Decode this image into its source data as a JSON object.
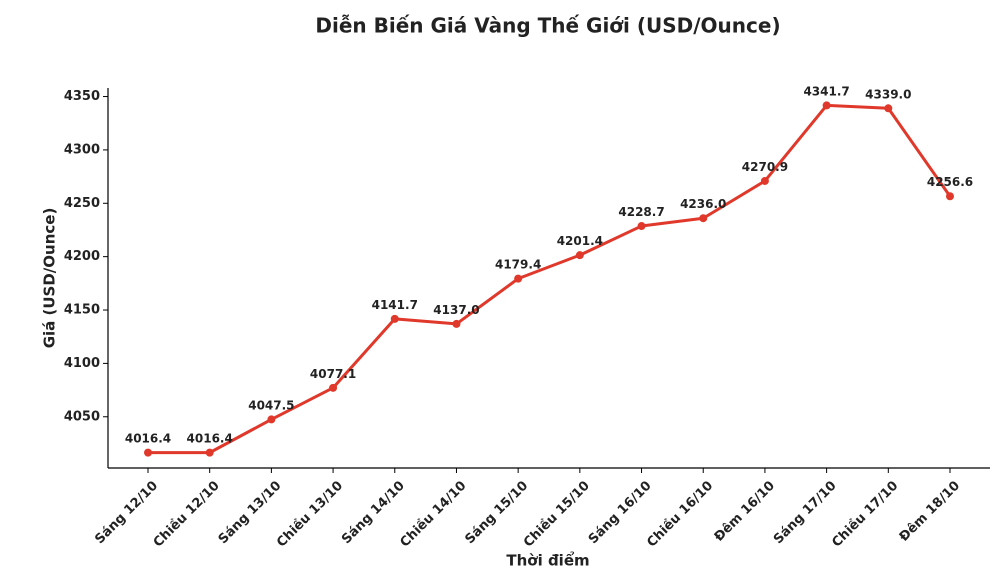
{
  "chart_data": {
    "type": "line",
    "title": "Diễn Biến Giá Vàng Thế Giới (USD/Ounce)",
    "x_label": "Thời điểm",
    "y_label": "Giá (USD/Ounce)",
    "categories": [
      "Sáng 12/10",
      "Chiều 12/10",
      "Sáng 13/10",
      "Chiều 13/10",
      "Sáng 14/10",
      "Chiều 14/10",
      "Sáng 15/10",
      "Chiều 15/10",
      "Sáng 16/10",
      "Chiều 16/10",
      "Đêm 16/10",
      "Sáng 17/10",
      "Chiều 17/10",
      "Đêm 18/10"
    ],
    "values": [
      4016.4,
      4016.4,
      4047.5,
      4077.1,
      4141.7,
      4137.0,
      4179.4,
      4201.4,
      4228.7,
      4236.0,
      4270.9,
      4341.7,
      4339.0,
      4256.6
    ],
    "value_labels": [
      "4016.4",
      "4016.4",
      "4047.5",
      "4077.1",
      "4141.7",
      "4137.0",
      "4179.4",
      "4201.4",
      "4228.7",
      "4236.0",
      "4270.9",
      "4341.7",
      "4339.0",
      "4256.6"
    ],
    "color": "#e0392b",
    "ylim": [
      4002,
      4358
    ],
    "yticks": [
      4050,
      4100,
      4150,
      4200,
      4250,
      4300,
      4350
    ]
  }
}
